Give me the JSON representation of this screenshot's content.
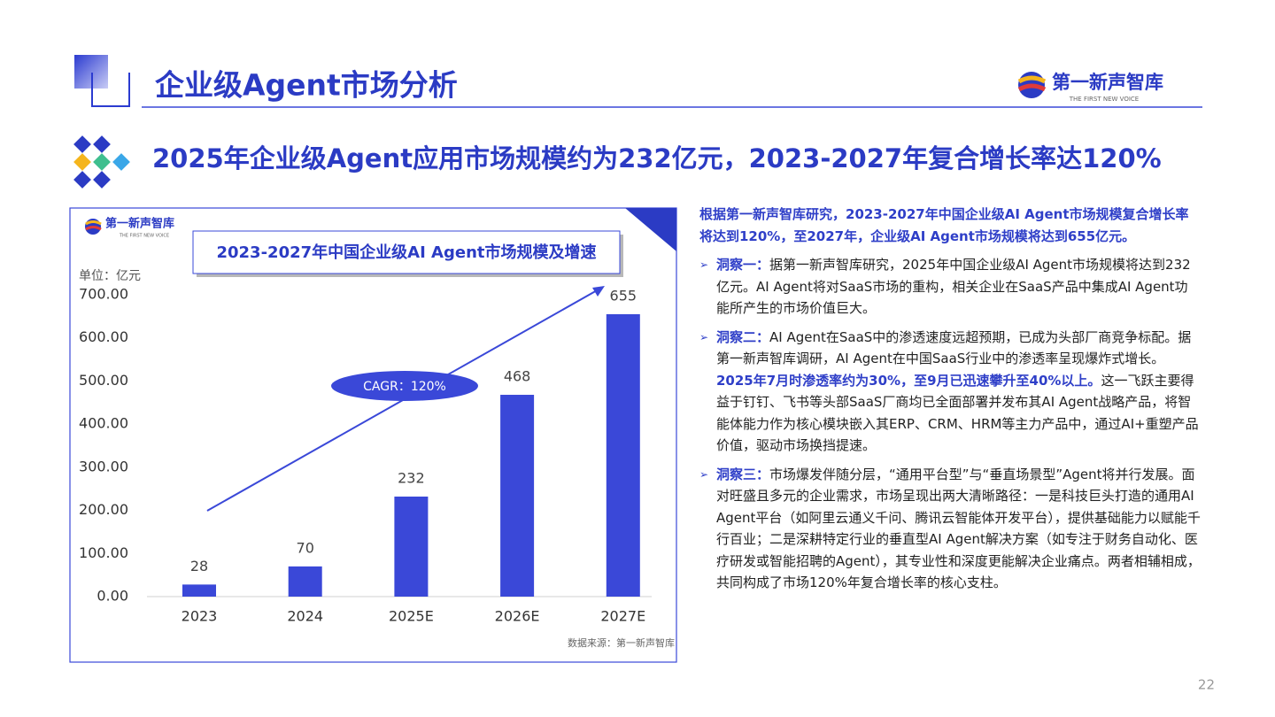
{
  "header": {
    "title": "企业级Agent市场分析",
    "logo_name": "第一新声智库",
    "logo_tagline": "THE FIRST NEW VOICE"
  },
  "headline": "2025年企业级Agent应用市场规模约为232亿元，2023-2027年复合增长率达120%",
  "chart_data": {
    "type": "bar",
    "title": "2023-2027年中国企业级AI Agent市场规模及增速",
    "unit": "单位：亿元",
    "logo_name": "第一新声智库",
    "logo_tagline": "THE FIRST NEW VOICE",
    "categories": [
      "2023",
      "2024",
      "2025E",
      "2026E",
      "2027E"
    ],
    "values": [
      28,
      70,
      232,
      468,
      655
    ],
    "color": "#3a48d8",
    "ylim": [
      0,
      700
    ],
    "yticks": [
      {
        "value": 0,
        "label": "0.00"
      },
      {
        "value": 100,
        "label": "100.00"
      },
      {
        "value": 200,
        "label": "200.00"
      },
      {
        "value": 300,
        "label": "300.00"
      },
      {
        "value": 400,
        "label": "400.00"
      },
      {
        "value": 500,
        "label": "500.00"
      },
      {
        "value": 600,
        "label": "600.00"
      },
      {
        "value": 700,
        "label": "700.00"
      }
    ],
    "grid": false,
    "annotation": "CAGR：120%",
    "source": "数据来源：第一新声智库"
  },
  "summary": "根据第一新声智库研究，2023-2027年中国企业级AI Agent市场规模复合增长率将达到120%，至2027年，企业级AI Agent市场规模将达到655亿元。",
  "insights": [
    {
      "label": "洞察一：",
      "segments": [
        {
          "text": "据第一新声智库研究，2025年中国企业级AI Agent市场规模将达到232亿元。AI Agent将对SaaS市场的重构，相关企业在SaaS产品中集成AI Agent功能所产生的市场价值巨大。",
          "bold": false
        }
      ]
    },
    {
      "label": "洞察二：",
      "segments": [
        {
          "text": "AI Agent在SaaS中的渗透速度远超预期，已成为头部厂商竞争标配。据第一新声智库调研，AI Agent在中国SaaS行业中的渗透率呈现爆炸式增长。",
          "bold": false
        },
        {
          "text": "2025年7月时渗透率约为30%，至9月已迅速攀升至40%以上。",
          "bold": true
        },
        {
          "text": "这一飞跃主要得益于钉钉、飞书等头部SaaS厂商均已全面部署并发布其AI Agent战略产品，将智能体能力作为核心模块嵌入其ERP、CRM、HRM等主力产品中，通过AI+重塑产品价值，驱动市场换挡提速。",
          "bold": false
        }
      ]
    },
    {
      "label": "洞察三：",
      "segments": [
        {
          "text": "市场爆发伴随分层，“通用平台型”与“垂直场景型”Agent将并行发展。面对旺盛且多元的企业需求，市场呈现出两大清晰路径：一是科技巨头打造的通用AI Agent平台（如阿里云通义千问、腾讯云智能体开发平台），提供基础能力以赋能千行百业；二是深耕特定行业的垂直型AI Agent解决方案（如专注于财务自动化、医疗研发或智能招聘的Agent），其专业性和深度更能解决企业痛点。两者相辅相成，共同构成了市场120%年复合增长率的核心支柱。",
          "bold": false
        }
      ]
    }
  ],
  "page_number": 22
}
